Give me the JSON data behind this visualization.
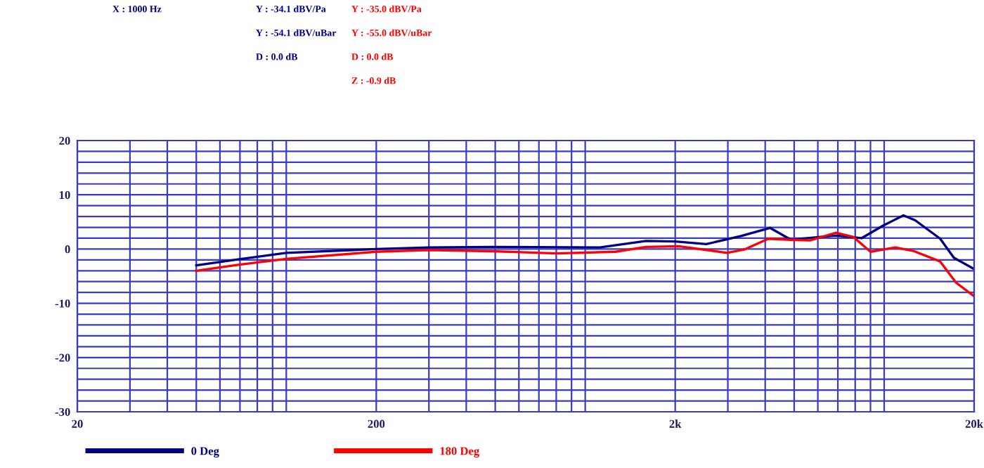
{
  "chart_data": {
    "type": "line",
    "annotations": [
      "X : 1000 Hz",
      "Y : -34.1 dBV/Pa",
      "Y : -54.1 dBV/uBar",
      "D : 0.0 dB",
      "Y : -35.0 dBV/Pa",
      "Y : -55.0 dBV/uBar",
      "D : 0.0 dB",
      "Z : -0.9 dB"
    ],
    "log": "x",
    "grid": true,
    "legend": "bottom",
    "line_style": "solid",
    "marker": "none",
    "xlim": [
      20,
      20000
    ],
    "ylim": [
      -30,
      20
    ],
    "xticks": [
      20,
      {
        "value": 30,
        "label": null
      },
      {
        "value": 40,
        "label": null
      },
      {
        "value": 50,
        "label": null
      },
      {
        "value": 60,
        "label": null
      },
      {
        "value": 70,
        "label": null
      },
      {
        "value": 80,
        "label": null
      },
      {
        "value": 90,
        "label": null
      },
      {
        "value": 100,
        "label": null
      },
      200,
      {
        "value": 300,
        "label": null
      },
      {
        "value": 400,
        "label": null
      },
      {
        "value": 500,
        "label": null
      },
      {
        "value": 600,
        "label": null
      },
      {
        "value": 700,
        "label": null
      },
      {
        "value": 800,
        "label": null
      },
      {
        "value": 900,
        "label": null
      },
      {
        "value": 1000,
        "label": null
      },
      {
        "value": 2000,
        "label": "2k"
      },
      {
        "value": 3000,
        "label": null
      },
      {
        "value": 4000,
        "label": null
      },
      {
        "value": 5000,
        "label": null
      },
      {
        "value": 6000,
        "label": null
      },
      {
        "value": 7000,
        "label": null
      },
      {
        "value": 8000,
        "label": null
      },
      {
        "value": 9000,
        "label": null
      },
      {
        "value": 10000,
        "label": null
      },
      {
        "value": 20000,
        "label": "20k"
      }
    ],
    "yticks": [
      20,
      {
        "value": 18,
        "label": null
      },
      {
        "value": 16,
        "label": null
      },
      {
        "value": 14,
        "label": null
      },
      {
        "value": 12,
        "label": null
      },
      10,
      {
        "value": 8,
        "label": null
      },
      {
        "value": 6,
        "label": null
      },
      {
        "value": 4,
        "label": null
      },
      {
        "value": 2,
        "label": null
      },
      0,
      {
        "value": -2,
        "label": null
      },
      {
        "value": -4,
        "label": null
      },
      {
        "value": -6,
        "label": null
      },
      {
        "value": -8,
        "label": null
      },
      -10,
      {
        "value": -12,
        "label": null
      },
      {
        "value": -14,
        "label": null
      },
      {
        "value": -16,
        "label": null
      },
      {
        "value": -18,
        "label": null
      },
      -20,
      {
        "value": -22,
        "label": null
      },
      {
        "value": -24,
        "label": null
      },
      {
        "value": -26,
        "label": null
      },
      {
        "value": -28,
        "label": null
      },
      -30
    ],
    "series": [
      {
        "name": "0 Deg",
        "color": "#000080",
        "x": [
          50,
          69,
          100,
          200,
          300,
          488,
          1118,
          1598,
          2000,
          2540,
          3320,
          4150,
          4880,
          6040,
          6890,
          8400,
          9900,
          11600,
          12700,
          15400,
          17100,
          20000
        ],
        "values": [
          -3.0,
          -1.9,
          -0.7,
          0.0,
          0.3,
          0.4,
          0.3,
          1.5,
          1.4,
          0.9,
          2.4,
          3.9,
          1.7,
          2.2,
          2.5,
          2.0,
          4.3,
          6.2,
          5.3,
          1.9,
          -1.6,
          -3.7
        ]
      },
      {
        "name": "180 Deg",
        "color": "#ff0000",
        "x": [
          50,
          69,
          100,
          200,
          300,
          488,
          805,
          1262,
          1598,
          2070,
          2980,
          3400,
          4100,
          4880,
          5650,
          6890,
          7900,
          9000,
          10900,
          12600,
          15400,
          17400,
          20000
        ],
        "values": [
          -4.0,
          -2.9,
          -1.8,
          -0.5,
          -0.2,
          -0.4,
          -0.8,
          -0.5,
          0.4,
          0.5,
          -0.7,
          -0.1,
          1.9,
          1.7,
          1.6,
          3.0,
          2.2,
          -0.5,
          0.3,
          -0.4,
          -2.3,
          -6.2,
          -8.7
        ]
      }
    ]
  }
}
